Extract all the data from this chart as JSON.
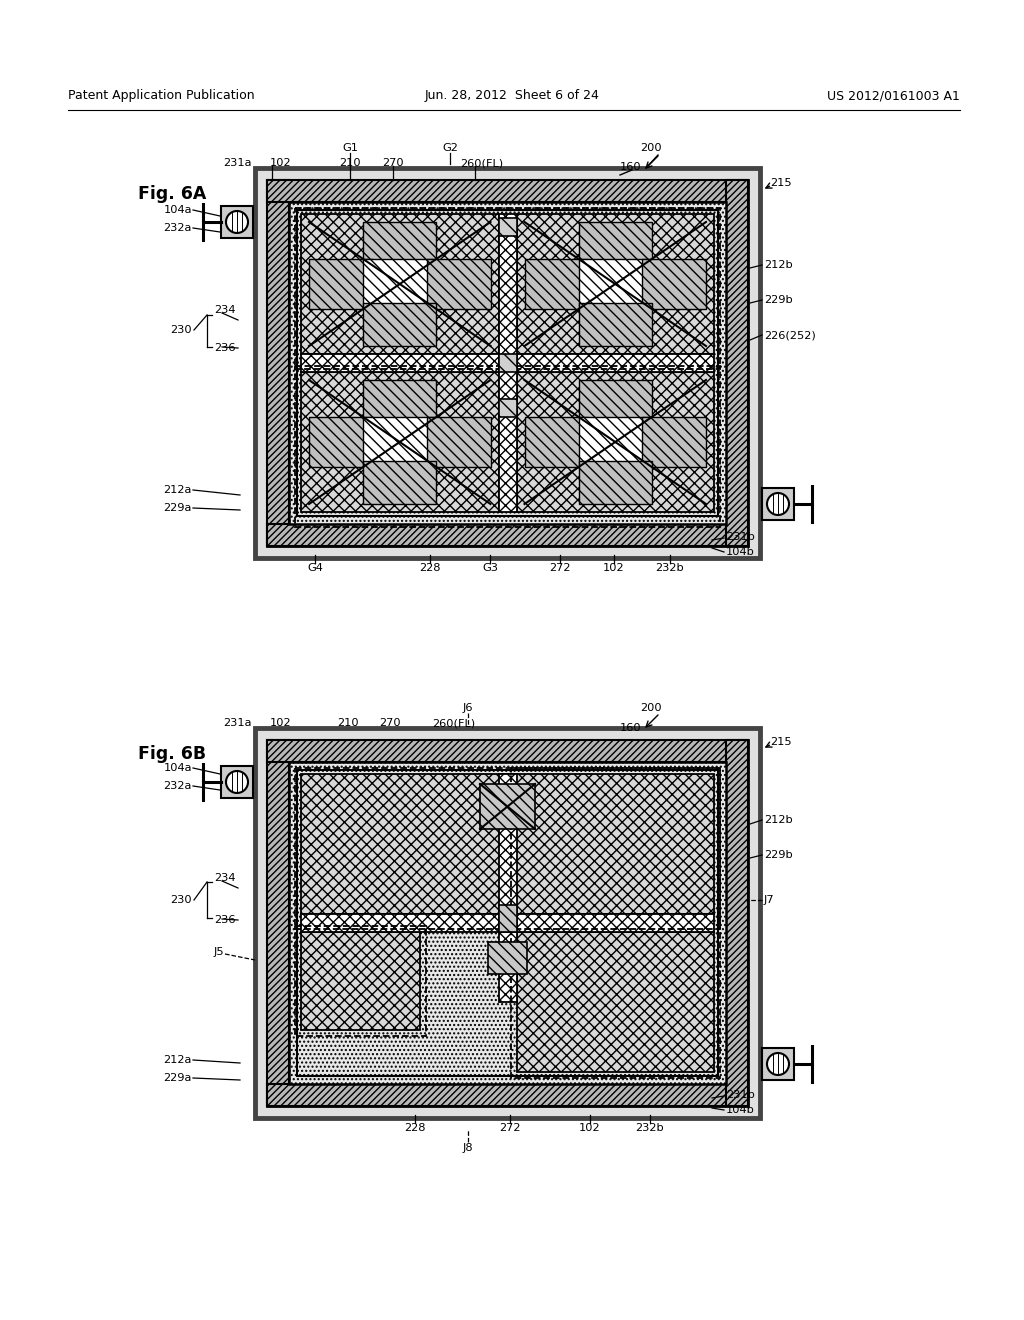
{
  "header_left": "Patent Application Publication",
  "header_mid": "Jun. 28, 2012  Sheet 6 of 24",
  "header_right": "US 2012/0161003 A1",
  "bg_color": "#ffffff"
}
